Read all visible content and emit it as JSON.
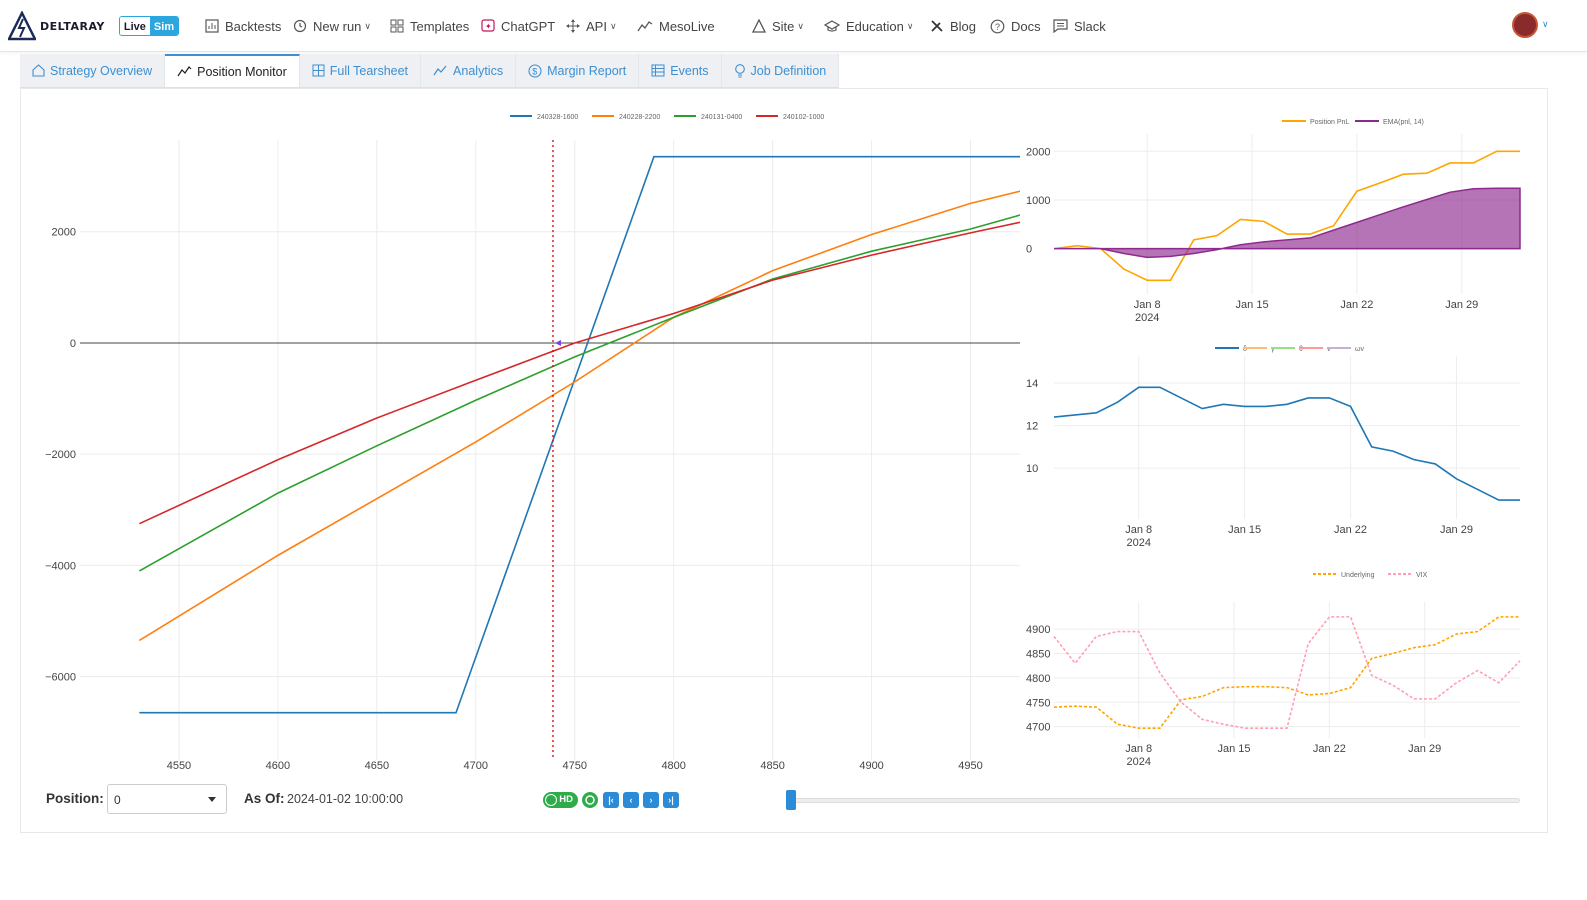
{
  "brand": {
    "name": "DELTARAY",
    "live": "Live",
    "sim": "Sim"
  },
  "nav": {
    "backtests": "Backtests",
    "new_run": "New run",
    "templates": "Templates",
    "chatgpt": "ChatGPT",
    "api": "API",
    "mesolive": "MesoLive",
    "site": "Site",
    "education": "Education",
    "blog": "Blog",
    "docs": "Docs",
    "slack": "Slack"
  },
  "tabs": {
    "strategy_overview": "Strategy Overview",
    "position_monitor": "Position Monitor",
    "full_tearsheet": "Full Tearsheet",
    "analytics": "Analytics",
    "margin_report": "Margin Report",
    "events": "Events",
    "job_definition": "Job Definition"
  },
  "controls": {
    "position_label": "Position:",
    "position_value": "0",
    "asof_label": "As Of:",
    "asof_value": "2024-01-02 10:00:00",
    "hd_label": "HD",
    "slider_fraction": 0.0
  },
  "colors": {
    "blue": "#1f77b4",
    "orange": "#ff7f0e",
    "green": "#2ca02c",
    "red": "#d62728",
    "purple": "#8e2a8e",
    "accent": "#2b8bd6"
  },
  "chart_data": [
    {
      "type": "line",
      "xlim": [
        4500,
        4975
      ],
      "ylim": [
        -7500,
        3650
      ],
      "x_ticks": [
        4550,
        4600,
        4650,
        4700,
        4750,
        4800,
        4850,
        4900,
        4950
      ],
      "y_ticks": [
        2000,
        0,
        -2000,
        -4000,
        -6000
      ],
      "y_tick_labels": [
        "2000",
        "0",
        "−2000",
        "−4000",
        "−6000"
      ],
      "vline_x": 4739,
      "series": [
        {
          "name": "240328-1600",
          "color": "#1f77b4",
          "x": [
            4530,
            4690,
            4790,
            4975
          ],
          "y": [
            -6650,
            -6650,
            3350,
            3350
          ]
        },
        {
          "name": "240228-2200",
          "color": "#ff7f0e",
          "x": [
            4530,
            4600,
            4650,
            4700,
            4750,
            4800,
            4850,
            4900,
            4950,
            4975
          ],
          "y": [
            -5350,
            -3820,
            -2800,
            -1780,
            -700,
            460,
            1300,
            1950,
            2510,
            2730
          ]
        },
        {
          "name": "240131-0400",
          "color": "#2ca02c",
          "x": [
            4530,
            4600,
            4650,
            4700,
            4750,
            4800,
            4850,
            4900,
            4950,
            4975
          ],
          "y": [
            -4100,
            -2700,
            -1850,
            -1030,
            -250,
            460,
            1150,
            1650,
            2050,
            2300
          ]
        },
        {
          "name": "240102-1000",
          "color": "#d62728",
          "x": [
            4530,
            4600,
            4650,
            4700,
            4750,
            4800,
            4850,
            4900,
            4950,
            4975
          ],
          "y": [
            -3250,
            -2100,
            -1350,
            -670,
            0,
            530,
            1130,
            1580,
            1980,
            2170
          ]
        }
      ]
    },
    {
      "type": "area",
      "x": [
        "Jan 2",
        "Jan 3",
        "Jan 4",
        "Jan 5",
        "Jan 8",
        "Jan 9",
        "Jan 10",
        "Jan 11",
        "Jan 12",
        "Jan 16",
        "Jan 17",
        "Jan 18",
        "Jan 19",
        "Jan 22",
        "Jan 23",
        "Jan 24",
        "Jan 25",
        "Jan 26",
        "Jan 29",
        "Jan 30",
        "Jan 31"
      ],
      "x_ticks": [
        "Jan 8",
        "Jan 15",
        "Jan 22",
        "Jan 29"
      ],
      "x_sub": "2024",
      "y_ticks": [
        0,
        1000,
        2000
      ],
      "ylim": [
        -850,
        2150
      ],
      "series": [
        {
          "name": "Position PnL",
          "color": "#ffa500",
          "values": [
            0,
            60,
            0,
            -420,
            -650,
            -650,
            180,
            270,
            600,
            560,
            300,
            300,
            470,
            1180,
            1350,
            1530,
            1550,
            1760,
            1760,
            2000,
            2000
          ]
        },
        {
          "name": "EMA(pnl, 14)",
          "color": "#8e2a8e",
          "values": [
            0,
            0,
            0,
            -100,
            -180,
            -160,
            -100,
            -20,
            80,
            140,
            180,
            220,
            380,
            540,
            700,
            860,
            1010,
            1160,
            1230,
            1240,
            1240
          ]
        }
      ]
    },
    {
      "type": "line",
      "x_ticks": [
        "Jan 8",
        "Jan 15",
        "Jan 22",
        "Jan 29"
      ],
      "x_sub": "2024",
      "y_ticks": [
        10,
        12,
        14
      ],
      "ylim": [
        7.8,
        14.8
      ],
      "legend": [
        "δ",
        "γ",
        "θ",
        "ν",
        "ωv"
      ],
      "series": [
        {
          "name": "δ",
          "color": "#1f77b4",
          "values": [
            12.4,
            12.5,
            12.6,
            13.1,
            13.8,
            13.8,
            13.3,
            12.8,
            13.0,
            12.9,
            12.9,
            13.0,
            13.3,
            13.3,
            12.9,
            11.0,
            10.8,
            10.4,
            10.2,
            9.5,
            9.0,
            8.5,
            8.5
          ]
        }
      ]
    },
    {
      "type": "line",
      "x_ticks": [
        "Jan 8",
        "Jan 15",
        "Jan 22",
        "Jan 29"
      ],
      "x_sub": "2024",
      "y_ticks": [
        4700,
        4750,
        4800,
        4850,
        4900
      ],
      "ylim": [
        4685,
        4935
      ],
      "series": [
        {
          "name": "Underlying",
          "color": "#ffa500",
          "values": [
            4740,
            4742,
            4740,
            4705,
            4697,
            4697,
            4755,
            4762,
            4780,
            4782,
            4782,
            4780,
            4765,
            4768,
            4780,
            4840,
            4850,
            4862,
            4868,
            4890,
            4895,
            4925,
            4925
          ]
        },
        {
          "name": "VIX",
          "color": "#ff9fb2",
          "values": [
            4885,
            4830,
            4885,
            4895,
            4895,
            4810,
            4750,
            4715,
            4705,
            4697,
            4697,
            4697,
            4870,
            4925,
            4925,
            4805,
            4785,
            4757,
            4757,
            4790,
            4815,
            4790,
            4835
          ]
        }
      ]
    }
  ]
}
